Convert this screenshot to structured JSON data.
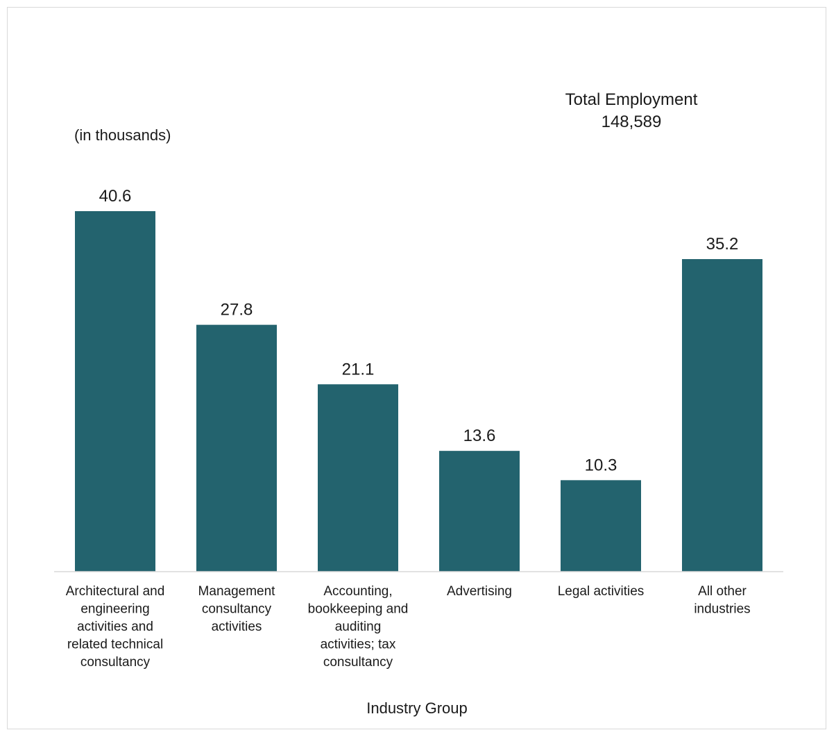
{
  "chart_data": {
    "type": "bar",
    "title": "",
    "unit_label": "(in thousands)",
    "xlabel": "Industry Group",
    "ylabel": "",
    "categories": [
      [
        "Architectural and",
        "engineering",
        "activities and",
        "related technical",
        "consultancy"
      ],
      [
        "Management",
        "consultancy",
        "activities"
      ],
      [
        "Accounting,",
        "bookkeeping and",
        "auditing",
        "activities; tax",
        "consultancy"
      ],
      [
        "Advertising"
      ],
      [
        "Legal activities"
      ],
      [
        "All other",
        "industries"
      ]
    ],
    "values": [
      40.6,
      27.8,
      21.1,
      13.6,
      10.3,
      35.2
    ],
    "data_labels": [
      "40.6",
      "27.8",
      "21.1",
      "13.6",
      "10.3",
      "35.2"
    ],
    "ylim": [
      0,
      40.6
    ],
    "grid": false,
    "legend": "none",
    "annotation": {
      "line1": "Total Employment",
      "line2": "148,589"
    },
    "colors": {
      "bar": "#23636e",
      "axis": "#d9d9d9",
      "text": "#1a1a1a",
      "frame": "#d9d9d9"
    }
  }
}
